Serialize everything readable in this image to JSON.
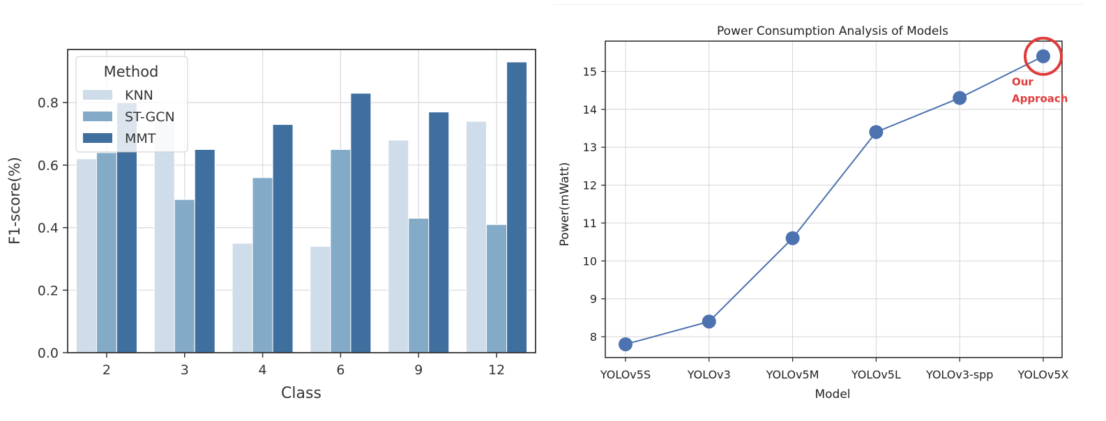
{
  "left": {
    "chart_data": {
      "type": "bar",
      "categories": [
        "2",
        "3",
        "4",
        "6",
        "9",
        "12"
      ],
      "series": [
        {
          "name": "KNN",
          "values": [
            0.62,
            0.74,
            0.35,
            0.34,
            0.68,
            0.74
          ],
          "color": "#cfdce9"
        },
        {
          "name": "ST-GCN",
          "values": [
            0.64,
            0.49,
            0.56,
            0.65,
            0.43,
            0.41
          ],
          "color": "#83abc8"
        },
        {
          "name": "MMT",
          "values": [
            0.8,
            0.65,
            0.73,
            0.83,
            0.77,
            0.93
          ],
          "color": "#3f6f9f"
        }
      ],
      "title": "",
      "xlabel": "Class",
      "ylabel": "F1-score(%)",
      "ylim": [
        0,
        0.97
      ],
      "yticks": [
        "0.0",
        "0.2",
        "0.4",
        "0.6",
        "0.8"
      ],
      "legend_title": "Method",
      "legend_position": "top-left",
      "grid": true
    }
  },
  "right": {
    "chart_data": {
      "type": "line",
      "categories": [
        "YOLOv5S",
        "YOLOv3",
        "YOLOv5M",
        "YOLOv5L",
        "YOLOv3-spp",
        "YOLOv5X"
      ],
      "series": [
        {
          "values": [
            7.8,
            8.4,
            10.6,
            13.4,
            14.3,
            15.4
          ],
          "color": "#4c72b0"
        }
      ],
      "title": "Power Consumption Analysis of Models",
      "xlabel": "Model",
      "ylabel": "Power(mWatt)",
      "ylim": [
        7.45,
        15.8
      ],
      "yticks": [
        "8",
        "9",
        "10",
        "11",
        "12",
        "13",
        "14",
        "15"
      ],
      "grid": true,
      "annotation": {
        "line1": "Our",
        "line2": "Approach",
        "color": "#e03a3a",
        "target_index": 5
      }
    }
  }
}
